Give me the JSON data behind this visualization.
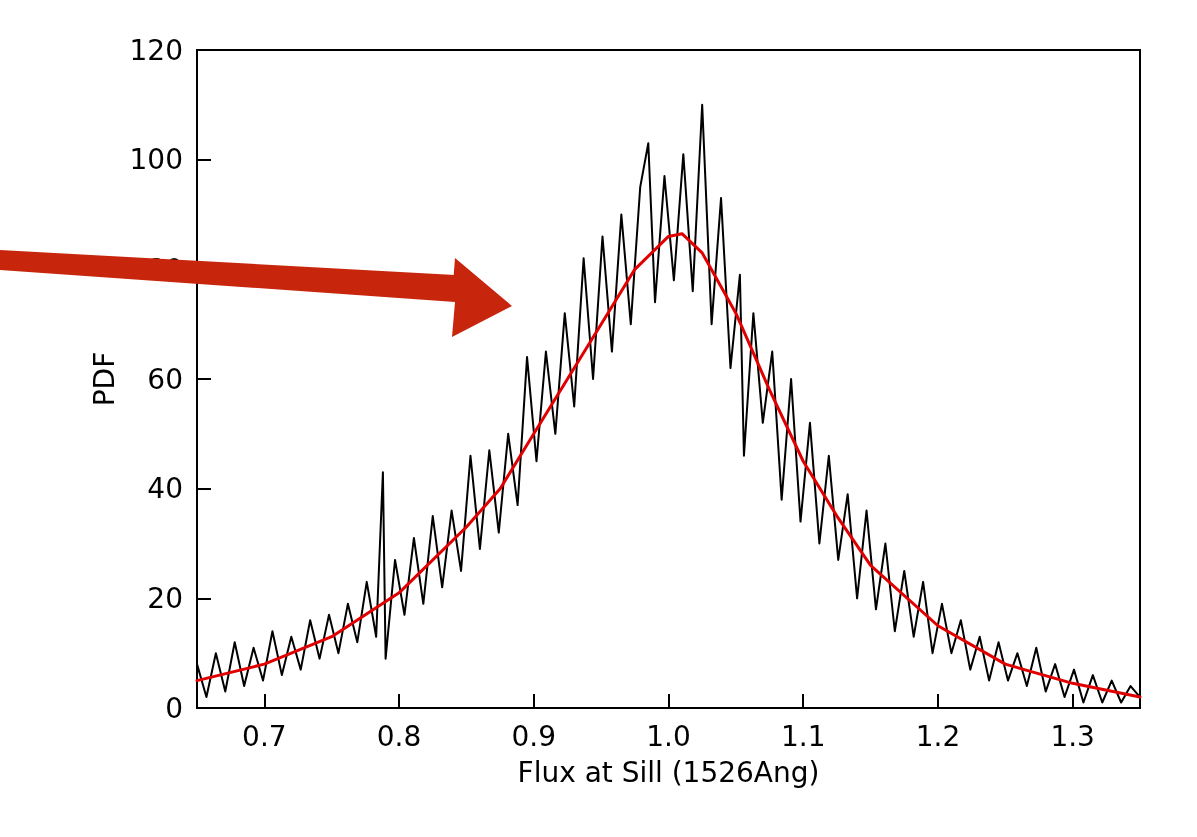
{
  "chart_data": {
    "type": "line",
    "xlabel": "Flux at Sill (1526Ang)",
    "ylabel": "PDF",
    "xlim": [
      0.65,
      1.35
    ],
    "xticks": [
      {
        "value": 0.7,
        "label": "0.7"
      },
      {
        "value": 0.8,
        "label": "0.8"
      },
      {
        "value": 0.9,
        "label": "0.9"
      },
      {
        "value": 1.0,
        "label": "1.0"
      },
      {
        "value": 1.1,
        "label": "1.1"
      },
      {
        "value": 1.2,
        "label": "1.2"
      },
      {
        "value": 1.3,
        "label": "1.3"
      }
    ],
    "ylim": [
      0,
      120
    ],
    "yticks": [
      0,
      20,
      40,
      60,
      80,
      100,
      120
    ],
    "marker": "none",
    "line_style": "solid",
    "series": [
      {
        "color": "#000000",
        "x": [
          0.65,
          0.657,
          0.664,
          0.671,
          0.678,
          0.685,
          0.692,
          0.699,
          0.706,
          0.713,
          0.72,
          0.727,
          0.734,
          0.741,
          0.748,
          0.755,
          0.762,
          0.769,
          0.776,
          0.783,
          0.788,
          0.79,
          0.797,
          0.804,
          0.811,
          0.818,
          0.825,
          0.832,
          0.839,
          0.846,
          0.853,
          0.86,
          0.867,
          0.874,
          0.881,
          0.888,
          0.895,
          0.902,
          0.909,
          0.916,
          0.923,
          0.93,
          0.937,
          0.944,
          0.951,
          0.958,
          0.965,
          0.972,
          0.979,
          0.985,
          0.99,
          0.997,
          1.004,
          1.011,
          1.018,
          1.025,
          1.032,
          1.039,
          1.046,
          1.053,
          1.056,
          1.063,
          1.07,
          1.077,
          1.084,
          1.091,
          1.098,
          1.105,
          1.112,
          1.119,
          1.126,
          1.133,
          1.14,
          1.147,
          1.154,
          1.161,
          1.168,
          1.175,
          1.182,
          1.189,
          1.196,
          1.203,
          1.21,
          1.217,
          1.224,
          1.231,
          1.238,
          1.245,
          1.252,
          1.259,
          1.266,
          1.273,
          1.28,
          1.287,
          1.294,
          1.301,
          1.308,
          1.315,
          1.322,
          1.329,
          1.336,
          1.343,
          1.35
        ],
        "values": [
          8,
          2,
          10,
          3,
          12,
          4,
          11,
          5,
          14,
          6,
          13,
          7,
          16,
          9,
          17,
          10,
          19,
          12,
          23,
          13,
          43,
          9,
          27,
          17,
          31,
          19,
          35,
          22,
          36,
          25,
          46,
          29,
          47,
          32,
          50,
          37,
          64,
          45,
          65,
          50,
          72,
          55,
          82,
          60,
          86,
          65,
          90,
          70,
          95,
          103,
          74,
          97,
          78,
          101,
          76,
          110,
          70,
          93,
          62,
          79,
          46,
          72,
          52,
          65,
          38,
          60,
          34,
          52,
          30,
          46,
          27,
          39,
          20,
          36,
          18,
          30,
          14,
          25,
          13,
          23,
          10,
          19,
          10,
          16,
          7,
          13,
          5,
          12,
          5,
          10,
          4,
          11,
          3,
          8,
          2,
          7,
          1,
          6,
          1,
          5,
          1,
          4,
          2
        ]
      },
      {
        "color": "#e00000",
        "x": [
          0.65,
          0.7,
          0.75,
          0.8,
          0.85,
          0.875,
          0.9,
          0.925,
          0.95,
          0.975,
          1.0,
          1.01,
          1.025,
          1.05,
          1.075,
          1.1,
          1.125,
          1.15,
          1.2,
          1.25,
          1.3,
          1.35
        ],
        "values": [
          5,
          8,
          13,
          21,
          33,
          40,
          50,
          60,
          70,
          80,
          86,
          86.5,
          83,
          72,
          58,
          45,
          35,
          26,
          15,
          8,
          4.5,
          2
        ]
      }
    ]
  }
}
